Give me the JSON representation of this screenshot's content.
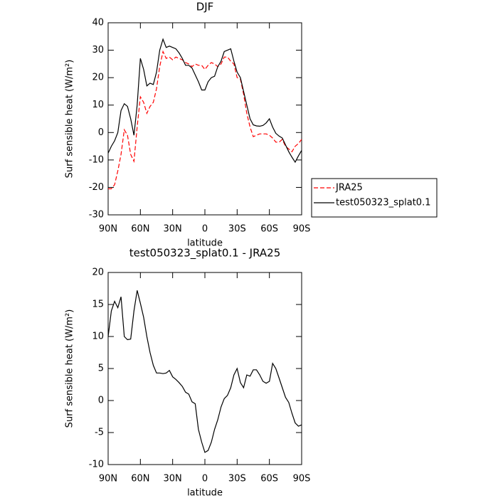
{
  "chart_data": [
    {
      "type": "line",
      "title": "DJF",
      "xlabel": "latitude",
      "ylabel": "Surf sensible heat (W/m²)",
      "x": [
        90,
        87,
        84,
        81,
        78,
        75,
        72,
        69,
        66,
        63,
        60,
        57,
        54,
        51,
        48,
        45,
        42,
        39,
        36,
        33,
        30,
        27,
        24,
        21,
        18,
        15,
        12,
        9,
        6,
        3,
        0,
        -3,
        -6,
        -9,
        -12,
        -15,
        -18,
        -21,
        -24,
        -27,
        -30,
        -33,
        -36,
        -39,
        -42,
        -45,
        -48,
        -51,
        -54,
        -57,
        -60,
        -63,
        -66,
        -69,
        -72,
        -75,
        -78,
        -81,
        -84,
        -87,
        -90
      ],
      "series": [
        {
          "name": "JRA25",
          "color": "#ff0000",
          "dash": "dashed",
          "values": [
            -20.5,
            -20.5,
            -19,
            -14,
            -8,
            1,
            -1,
            -8,
            -10.5,
            2,
            13,
            11,
            7,
            9.5,
            11,
            16,
            24,
            29.5,
            27,
            27.5,
            26.5,
            27.5,
            27,
            26.5,
            25.5,
            25,
            24,
            25,
            24.5,
            24.5,
            23,
            24.5,
            25.5,
            25,
            24,
            25,
            27.5,
            27.5,
            26,
            25,
            20,
            19.5,
            14,
            7,
            2,
            -1.5,
            -1,
            -0.5,
            -0.5,
            -0.5,
            -1,
            -2,
            -3.5,
            -3.5,
            -2.5,
            -5,
            -6,
            -7,
            -5,
            -4,
            -2.5
          ]
        },
        {
          "name": "test050323_splat0.1",
          "color": "#000000",
          "dash": "solid",
          "values": [
            -7.5,
            -5,
            -3,
            0,
            8,
            10.5,
            9.5,
            5,
            -1,
            10,
            27,
            23,
            17,
            18,
            17.5,
            22,
            30,
            34,
            31,
            31.5,
            31,
            30.5,
            29,
            27,
            24.5,
            24.5,
            23.5,
            21,
            18.5,
            15.5,
            15.5,
            18.5,
            20,
            20.5,
            24,
            26,
            29.5,
            30,
            30.5,
            26,
            22,
            20,
            15,
            10,
            5,
            2.8,
            2.4,
            2.3,
            2.6,
            3.5,
            5,
            2,
            -0.3,
            -1.3,
            -2,
            -4.5,
            -7,
            -9,
            -10.8,
            -8.5,
            -6.5
          ]
        }
      ],
      "xlim": [
        90,
        -90
      ],
      "xticks": [
        {
          "value": 90,
          "label": "90N"
        },
        {
          "value": 60,
          "label": "60N"
        },
        {
          "value": 30,
          "label": "30N"
        },
        0,
        {
          "value": -30,
          "label": "30S"
        },
        {
          "value": -60,
          "label": "60S"
        },
        {
          "value": -90,
          "label": "90S"
        }
      ],
      "ylim": [
        -30,
        40
      ],
      "yticks": [
        -30,
        -20,
        -10,
        0,
        10,
        20,
        30,
        40
      ],
      "legend": "right"
    },
    {
      "type": "line",
      "title": "test050323_splat0.1 - JRA25",
      "xlabel": "latitude",
      "ylabel": "Surf sensible heat (W/m²)",
      "x": [
        90,
        87,
        84,
        81,
        78,
        75,
        72,
        69,
        66,
        63,
        60,
        57,
        54,
        51,
        48,
        45,
        42,
        39,
        36,
        33,
        30,
        27,
        24,
        21,
        18,
        15,
        12,
        9,
        6,
        3,
        0,
        -3,
        -6,
        -9,
        -12,
        -15,
        -18,
        -21,
        -24,
        -27,
        -30,
        -33,
        -36,
        -39,
        -42,
        -45,
        -48,
        -51,
        -54,
        -57,
        -60,
        -63,
        -66,
        -69,
        -72,
        -75,
        -78,
        -81,
        -84,
        -87,
        -90
      ],
      "color": "#000000",
      "values": [
        10,
        14,
        15.5,
        14.5,
        16.2,
        10,
        9.5,
        9.6,
        14,
        17.2,
        15.2,
        13,
        10,
        7.5,
        5.5,
        4.3,
        4.3,
        4.2,
        4.3,
        4.7,
        3.7,
        3.3,
        2.8,
        2.2,
        1.3,
        1,
        -0.2,
        -0.5,
        -4.5,
        -6.5,
        -8.1,
        -7.8,
        -6.5,
        -4.5,
        -3,
        -1,
        0.3,
        0.8,
        2,
        4,
        5,
        2.8,
        2,
        4,
        3.8,
        4.8,
        4.8,
        4,
        3,
        2.7,
        3,
        5.8,
        5,
        3.5,
        2,
        0.5,
        -0.3,
        -2,
        -3.5,
        -4,
        -3.8
      ],
      "xlim": [
        90,
        -90
      ],
      "xticks": [
        {
          "value": 90,
          "label": "90N"
        },
        {
          "value": 60,
          "label": "60N"
        },
        {
          "value": 30,
          "label": "30N"
        },
        0,
        {
          "value": -30,
          "label": "30S"
        },
        {
          "value": -60,
          "label": "60S"
        },
        {
          "value": -90,
          "label": "90S"
        }
      ],
      "ylim": [
        -10,
        20
      ],
      "yticks": [
        -10,
        -5,
        0,
        5,
        10,
        15,
        20
      ]
    }
  ]
}
